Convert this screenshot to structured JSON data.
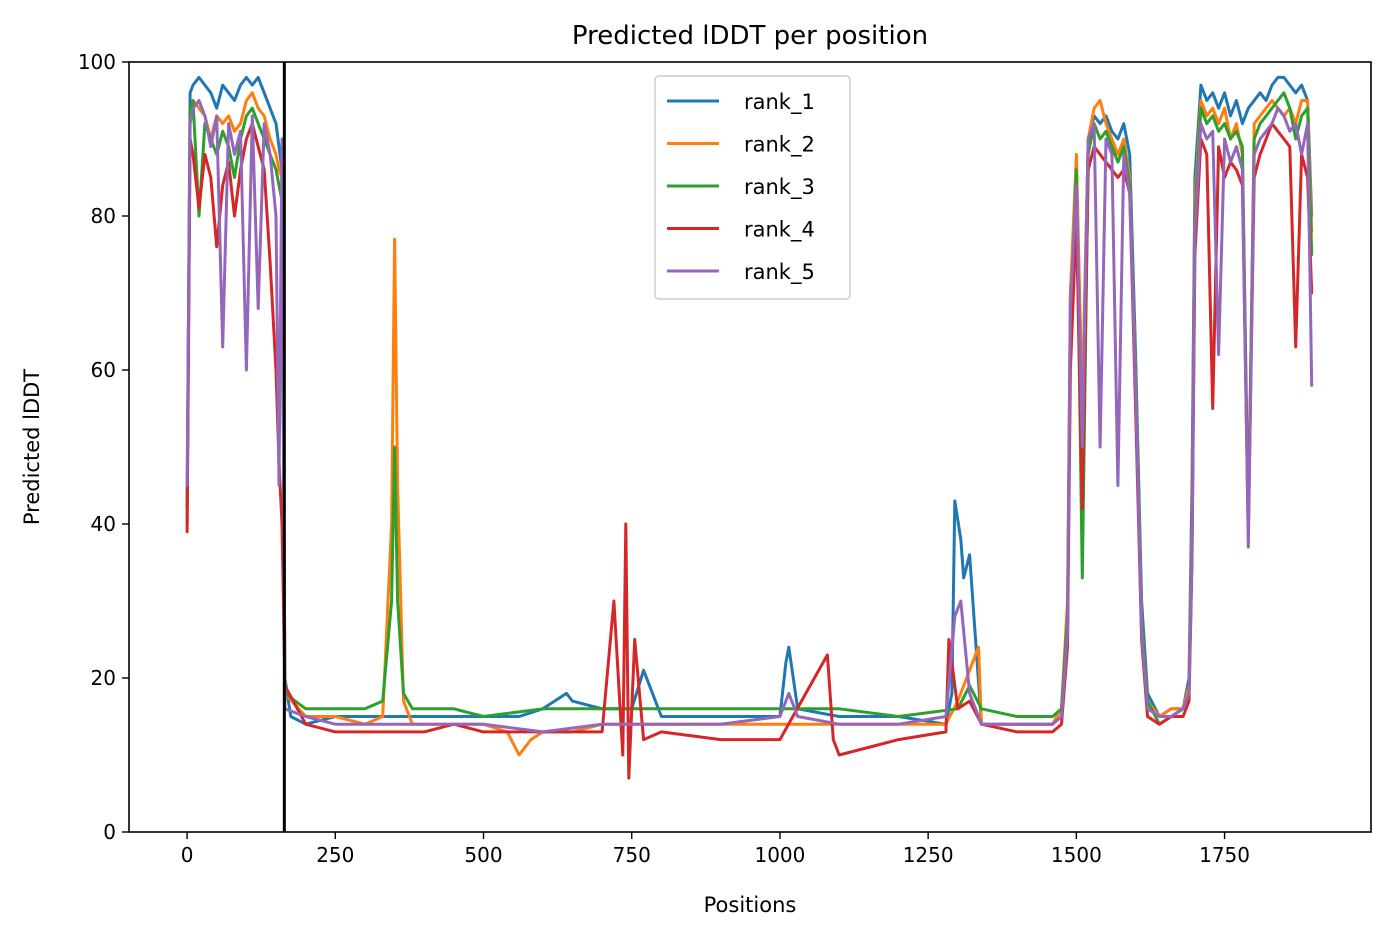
{
  "chart_data": {
    "type": "line",
    "title": "Predicted lDDT per position",
    "xlabel": "Positions",
    "ylabel": "Predicted lDDT",
    "xlim": [
      -98,
      1997
    ],
    "ylim": [
      0,
      100
    ],
    "xticks": [
      0,
      250,
      500,
      750,
      1000,
      1250,
      1500,
      1750
    ],
    "yticks": [
      0,
      20,
      40,
      60,
      80,
      100
    ],
    "grid": false,
    "legend_position": "top-center",
    "vline_x": 164,
    "series": [
      {
        "name": "rank_1",
        "color": "#1f77b4",
        "x": [
          0,
          5,
          10,
          20,
          30,
          40,
          50,
          60,
          70,
          80,
          90,
          100,
          110,
          120,
          130,
          140,
          150,
          155,
          160,
          165,
          175,
          200,
          250,
          300,
          350,
          400,
          450,
          500,
          560,
          600,
          640,
          650,
          700,
          750,
          770,
          800,
          900,
          1000,
          1010,
          1015,
          1030,
          1100,
          1200,
          1280,
          1290,
          1295,
          1305,
          1310,
          1320,
          1340,
          1400,
          1460,
          1475,
          1485,
          1490,
          1500,
          1510,
          1520,
          1530,
          1540,
          1550,
          1560,
          1570,
          1580,
          1590,
          1600,
          1610,
          1620,
          1640,
          1660,
          1680,
          1690,
          1695,
          1700,
          1710,
          1720,
          1730,
          1740,
          1750,
          1760,
          1770,
          1780,
          1790,
          1800,
          1810,
          1820,
          1830,
          1840,
          1850,
          1860,
          1870,
          1880,
          1890,
          1897
        ],
        "y": [
          42,
          96,
          97,
          98,
          97,
          96,
          94,
          97,
          96,
          95,
          97,
          98,
          97,
          98,
          96,
          94,
          92,
          89,
          86,
          20,
          15,
          14,
          15,
          15,
          15,
          15,
          15,
          15,
          15,
          16,
          18,
          17,
          16,
          16,
          21,
          15,
          15,
          15,
          22,
          24,
          16,
          15,
          15,
          14,
          18,
          43,
          38,
          33,
          36,
          14,
          14,
          14,
          16,
          25,
          70,
          85,
          55,
          90,
          93,
          92,
          93,
          91,
          90,
          92,
          88,
          62,
          30,
          18,
          15,
          16,
          16,
          20,
          45,
          85,
          97,
          95,
          96,
          94,
          96,
          93,
          95,
          92,
          94,
          95,
          96,
          95,
          97,
          98,
          98,
          97,
          96,
          97,
          95,
          80
        ]
      },
      {
        "name": "rank_2",
        "color": "#ff7f0e",
        "x": [
          0,
          5,
          10,
          20,
          30,
          40,
          50,
          60,
          70,
          80,
          90,
          100,
          110,
          120,
          130,
          140,
          150,
          155,
          160,
          165,
          200,
          250,
          300,
          330,
          345,
          350,
          355,
          365,
          380,
          450,
          500,
          540,
          560,
          580,
          600,
          650,
          700,
          750,
          800,
          900,
          1000,
          1100,
          1200,
          1280,
          1300,
          1320,
          1335,
          1340,
          1400,
          1460,
          1475,
          1485,
          1490,
          1500,
          1510,
          1520,
          1530,
          1540,
          1550,
          1560,
          1570,
          1580,
          1590,
          1600,
          1610,
          1620,
          1640,
          1660,
          1680,
          1690,
          1695,
          1700,
          1710,
          1720,
          1730,
          1740,
          1750,
          1760,
          1770,
          1780,
          1790,
          1800,
          1810,
          1820,
          1830,
          1840,
          1850,
          1860,
          1870,
          1880,
          1890,
          1897
        ],
        "y": [
          40,
          93,
          95,
          94,
          93,
          90,
          93,
          92,
          93,
          91,
          92,
          95,
          96,
          94,
          93,
          90,
          88,
          86,
          85,
          18,
          15,
          15,
          14,
          15,
          40,
          77,
          45,
          17,
          14,
          14,
          14,
          13,
          10,
          12,
          13,
          13,
          14,
          14,
          14,
          14,
          14,
          14,
          14,
          14,
          17,
          21,
          24,
          14,
          14,
          14,
          16,
          30,
          70,
          88,
          55,
          90,
          94,
          95,
          92,
          90,
          88,
          90,
          85,
          60,
          28,
          17,
          15,
          16,
          16,
          19,
          40,
          82,
          95,
          93,
          94,
          92,
          94,
          90,
          92,
          88,
          38,
          92,
          93,
          94,
          95,
          94,
          93,
          94,
          92,
          95,
          95,
          78
        ]
      },
      {
        "name": "rank_3",
        "color": "#2ca02c",
        "x": [
          0,
          5,
          10,
          20,
          30,
          40,
          50,
          60,
          70,
          80,
          90,
          100,
          110,
          120,
          130,
          140,
          150,
          155,
          160,
          165,
          200,
          250,
          300,
          330,
          345,
          350,
          355,
          365,
          380,
          450,
          500,
          600,
          700,
          750,
          800,
          900,
          1000,
          1100,
          1200,
          1300,
          1320,
          1340,
          1400,
          1460,
          1475,
          1485,
          1490,
          1500,
          1510,
          1520,
          1530,
          1540,
          1550,
          1560,
          1570,
          1580,
          1590,
          1600,
          1610,
          1620,
          1640,
          1660,
          1680,
          1690,
          1695,
          1700,
          1710,
          1720,
          1730,
          1740,
          1750,
          1760,
          1770,
          1780,
          1790,
          1800,
          1810,
          1820,
          1830,
          1840,
          1850,
          1860,
          1870,
          1880,
          1890,
          1897
        ],
        "y": [
          42,
          94,
          95,
          80,
          92,
          90,
          88,
          91,
          89,
          85,
          90,
          93,
          94,
          92,
          90,
          88,
          86,
          84,
          82,
          18,
          16,
          16,
          16,
          17,
          30,
          50,
          30,
          18,
          16,
          16,
          15,
          16,
          16,
          16,
          16,
          16,
          16,
          16,
          15,
          16,
          19,
          16,
          15,
          15,
          16,
          28,
          65,
          86,
          33,
          88,
          92,
          90,
          91,
          89,
          87,
          89,
          84,
          60,
          28,
          17,
          14,
          15,
          16,
          18,
          38,
          80,
          94,
          92,
          93,
          91,
          92,
          90,
          91,
          89,
          40,
          90,
          92,
          93,
          94,
          95,
          96,
          94,
          90,
          93,
          94,
          75
        ]
      },
      {
        "name": "rank_4",
        "color": "#d62728",
        "x": [
          0,
          5,
          10,
          20,
          30,
          40,
          50,
          60,
          70,
          80,
          90,
          100,
          110,
          120,
          130,
          140,
          150,
          155,
          160,
          165,
          200,
          250,
          300,
          350,
          400,
          450,
          500,
          600,
          700,
          720,
          735,
          740,
          745,
          755,
          770,
          800,
          900,
          1000,
          1080,
          1090,
          1100,
          1200,
          1280,
          1285,
          1300,
          1320,
          1340,
          1400,
          1460,
          1475,
          1485,
          1490,
          1500,
          1510,
          1520,
          1530,
          1540,
          1550,
          1560,
          1570,
          1580,
          1590,
          1600,
          1610,
          1620,
          1640,
          1660,
          1680,
          1690,
          1695,
          1700,
          1710,
          1720,
          1730,
          1740,
          1750,
          1760,
          1770,
          1780,
          1790,
          1800,
          1810,
          1820,
          1830,
          1840,
          1850,
          1860,
          1870,
          1880,
          1890,
          1897
        ],
        "y": [
          39,
          90,
          88,
          81,
          88,
          85,
          76,
          84,
          87,
          80,
          86,
          90,
          92,
          89,
          86,
          74,
          60,
          48,
          40,
          19,
          14,
          13,
          13,
          13,
          13,
          14,
          13,
          13,
          13,
          30,
          10,
          40,
          7,
          25,
          12,
          13,
          12,
          12,
          23,
          12,
          10,
          12,
          13,
          25,
          16,
          17,
          14,
          13,
          13,
          14,
          24,
          60,
          80,
          42,
          86,
          89,
          88,
          87,
          86,
          85,
          86,
          83,
          55,
          25,
          15,
          14,
          15,
          15,
          17,
          35,
          75,
          90,
          88,
          55,
          89,
          85,
          87,
          86,
          84,
          39,
          85,
          88,
          90,
          92,
          91,
          90,
          89,
          63,
          88,
          85,
          70
        ]
      },
      {
        "name": "rank_5",
        "color": "#9467bd",
        "x": [
          0,
          5,
          10,
          20,
          30,
          40,
          50,
          60,
          70,
          80,
          90,
          100,
          110,
          120,
          130,
          140,
          150,
          155,
          160,
          165,
          200,
          250,
          300,
          350,
          400,
          450,
          500,
          600,
          700,
          750,
          800,
          900,
          1000,
          1015,
          1030,
          1100,
          1200,
          1280,
          1295,
          1305,
          1320,
          1340,
          1400,
          1460,
          1475,
          1485,
          1490,
          1500,
          1510,
          1520,
          1530,
          1540,
          1550,
          1560,
          1570,
          1580,
          1590,
          1600,
          1610,
          1620,
          1640,
          1660,
          1680,
          1690,
          1695,
          1700,
          1710,
          1720,
          1730,
          1740,
          1750,
          1760,
          1770,
          1780,
          1790,
          1800,
          1810,
          1820,
          1830,
          1840,
          1850,
          1860,
          1870,
          1880,
          1890,
          1897
        ],
        "y": [
          45,
          92,
          94,
          95,
          93,
          89,
          93,
          63,
          92,
          88,
          91,
          60,
          93,
          68,
          92,
          88,
          80,
          45,
          90,
          16,
          15,
          14,
          14,
          14,
          14,
          14,
          14,
          13,
          14,
          14,
          14,
          14,
          15,
          18,
          15,
          14,
          14,
          15,
          28,
          30,
          18,
          14,
          14,
          14,
          15,
          26,
          68,
          84,
          50,
          90,
          92,
          50,
          90,
          88,
          45,
          88,
          83,
          58,
          26,
          16,
          15,
          15,
          16,
          18,
          36,
          78,
          92,
          90,
          91,
          62,
          90,
          87,
          89,
          86,
          37,
          88,
          90,
          91,
          92,
          94,
          93,
          91,
          92,
          88,
          92,
          58
        ]
      }
    ]
  }
}
